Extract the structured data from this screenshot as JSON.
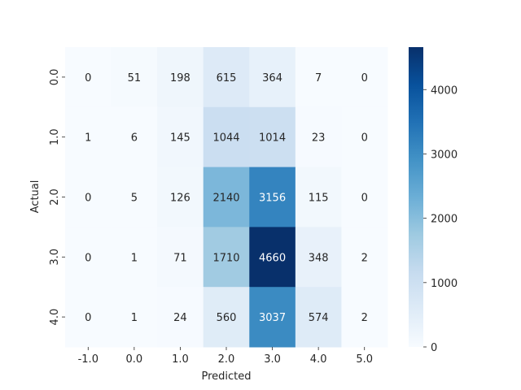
{
  "chart_data": {
    "type": "heatmap",
    "title": "",
    "xlabel": "Predicted",
    "ylabel": "Actual",
    "x_categories": [
      "-1.0",
      "0.0",
      "1.0",
      "2.0",
      "3.0",
      "4.0",
      "5.0"
    ],
    "y_categories": [
      "0.0",
      "1.0",
      "2.0",
      "3.0",
      "4.0"
    ],
    "values": [
      [
        0,
        51,
        198,
        615,
        364,
        7,
        0
      ],
      [
        1,
        6,
        145,
        1044,
        1014,
        23,
        0
      ],
      [
        0,
        5,
        126,
        2140,
        3156,
        115,
        0
      ],
      [
        0,
        1,
        71,
        1710,
        4660,
        348,
        2
      ],
      [
        0,
        1,
        24,
        560,
        3037,
        574,
        2
      ]
    ],
    "colorbar": {
      "min": 0,
      "max": 4660,
      "ticks": [
        "0",
        "1000",
        "2000",
        "3000",
        "4000"
      ],
      "tick_values": [
        0,
        1000,
        2000,
        3000,
        4000
      ]
    },
    "colormap": "Blues",
    "grid": false
  }
}
